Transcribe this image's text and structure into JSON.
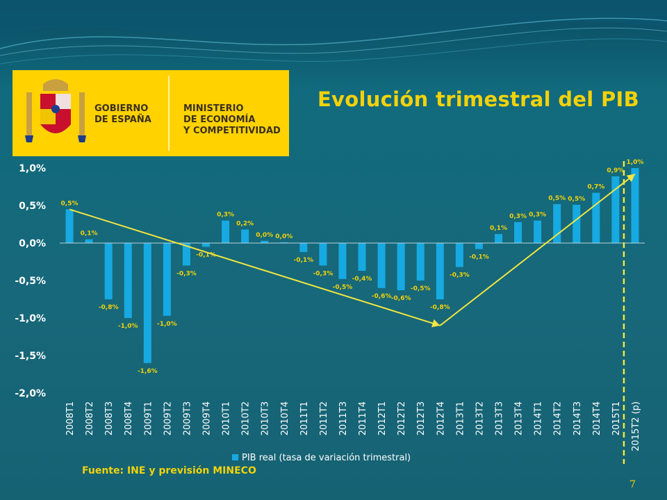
{
  "slide": {
    "title": "Evolución trimestral del PIB",
    "source": "Fuente: INE y previsión MINECO",
    "page_number": "7"
  },
  "logo": {
    "left_text": "GOBIERNO\nDE ESPAÑA",
    "right_text": "MINISTERIO\nDE ECONOMÍA\nY COMPETITIVIDAD"
  },
  "colors": {
    "bar": "#17a9e1",
    "label": "#f2d20a",
    "trend": "#f2e640",
    "background": "#17687a"
  },
  "chart_data": {
    "type": "bar",
    "categories": [
      "2008T1",
      "2008T2",
      "2008T3",
      "2008T4",
      "2009T1",
      "2009T2",
      "2009T3",
      "2009T4",
      "2010T1",
      "2010T2",
      "2010T3",
      "2010T4",
      "2011T1",
      "2011T2",
      "2011T3",
      "2011T4",
      "2012T1",
      "2012T2",
      "2012T3",
      "2012T4",
      "2013T1",
      "2013T2",
      "2013T3",
      "2013T4",
      "2014T1",
      "2014T2",
      "2014T3",
      "2014T4",
      "2015T1",
      "2015T2 (p)"
    ],
    "series": [
      {
        "name": "PIB real (tasa de variación trimestral)",
        "values": [
          0.45,
          0.05,
          -0.75,
          -1.0,
          -1.6,
          -0.97,
          -0.3,
          -0.05,
          0.3,
          0.18,
          0.03,
          0.01,
          -0.12,
          -0.3,
          -0.48,
          -0.37,
          -0.6,
          -0.63,
          -0.5,
          -0.75,
          -0.32,
          -0.08,
          0.12,
          0.28,
          0.3,
          0.52,
          0.51,
          0.67,
          0.89,
          1.0
        ],
        "data_labels": [
          "0,5%",
          "0,1%",
          "-0,8%",
          "-1,0%",
          "-1,6%",
          "-1,0%",
          "-0,3%",
          "-0,1%",
          "0,3%",
          "0,2%",
          "0,0%",
          "0,0%",
          "-0,1%",
          "-0,3%",
          "-0,5%",
          "-0,4%",
          "-0,6%",
          "-0,6%",
          "-0,5%",
          "-0,8%",
          "-0,3%",
          "-0,1%",
          "0,1%",
          "0,3%",
          "0,3%",
          "0,5%",
          "0,5%",
          "0,7%",
          "0,9%",
          "1,0%"
        ]
      }
    ],
    "y_ticks": [
      1.0,
      0.5,
      0.0,
      -0.5,
      -1.0,
      -1.5,
      -2.0
    ],
    "y_tick_labels": [
      "1,0%",
      "0,5%",
      "0,0%",
      "-0,5%",
      "-1,0%",
      "-1,5%",
      "-2,0%"
    ],
    "ylim": [
      -2.0,
      1.0
    ],
    "grid": false,
    "legend": "bottom",
    "trend_lines": [
      {
        "from": [
          "2008T1",
          0.45
        ],
        "to": [
          "2012T4",
          -1.1
        ]
      },
      {
        "from": [
          "2012T4",
          -1.1
        ],
        "to": [
          "2015T2 (p)",
          0.92
        ]
      }
    ],
    "forecast_marker": "2015T2 (p)"
  }
}
